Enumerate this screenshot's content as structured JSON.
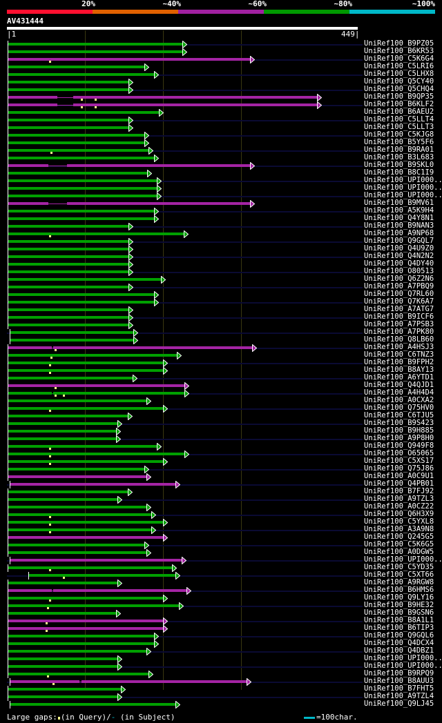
{
  "header": {
    "identity_scale": [
      {
        "label": "20%",
        "color": "#ff1030"
      },
      {
        "label": "~40%",
        "color": "#e06000"
      },
      {
        "label": "~60%",
        "color": "#a020a0"
      },
      {
        "label": "~80%",
        "color": "#009900"
      },
      {
        "label": "~100%",
        "color": "#00b8c8"
      }
    ],
    "query_name": "AV431444",
    "query_start": "1",
    "query_end": "449"
  },
  "colors": {
    "green": "#00a000",
    "magenta": "#a424a4",
    "stripe": "#0a0a33",
    "grid": "#3a3810",
    "gap_mark": "#ffff88"
  },
  "query_length": 449,
  "hits": [
    {
      "label": "UniRef100_B9PZ05",
      "color": "green",
      "start": 1,
      "end": 226,
      "marks": [],
      "gaps": []
    },
    {
      "label": "UniRef100_B6KR53",
      "color": "green",
      "start": 1,
      "end": 226,
      "marks": [],
      "gaps": []
    },
    {
      "label": "UniRef100_C5K6G4",
      "color": "magenta",
      "start": 1,
      "end": 314,
      "marks": [
        54
      ],
      "gaps": []
    },
    {
      "label": "UniRef100_C5LRI6",
      "color": "green",
      "start": 1,
      "end": 177,
      "marks": [],
      "gaps": []
    },
    {
      "label": "UniRef100_C5LHX8",
      "color": "green",
      "start": 1,
      "end": 190,
      "marks": [],
      "gaps": []
    },
    {
      "label": "UniRef100_Q5CY40",
      "color": "green",
      "start": 1,
      "end": 157,
      "marks": [],
      "gaps": []
    },
    {
      "label": "UniRef100_Q5CHQ4",
      "color": "green",
      "start": 1,
      "end": 157,
      "marks": [],
      "gaps": []
    },
    {
      "label": "UniRef100_B9QP35",
      "color": "magenta",
      "start": 1,
      "end": 400,
      "marks": [
        95,
        113
      ],
      "gaps": [
        [
          64,
          85
        ]
      ]
    },
    {
      "label": "UniRef100_B6KLF2",
      "color": "magenta",
      "start": 1,
      "end": 400,
      "marks": [
        95,
        113
      ],
      "gaps": [
        [
          64,
          85
        ]
      ]
    },
    {
      "label": "UniRef100_B6AEU2",
      "color": "green",
      "start": 1,
      "end": 196,
      "marks": [],
      "gaps": []
    },
    {
      "label": "UniRef100_C5LLT4",
      "color": "green",
      "start": 1,
      "end": 157,
      "marks": [],
      "gaps": []
    },
    {
      "label": "UniRef100_C5LLT3",
      "color": "green",
      "start": 1,
      "end": 157,
      "marks": [],
      "gaps": []
    },
    {
      "label": "UniRef100_C5KJG8",
      "color": "green",
      "start": 1,
      "end": 177,
      "marks": [],
      "gaps": []
    },
    {
      "label": "UniRef100_B5Y5F6",
      "color": "green",
      "start": 1,
      "end": 177,
      "marks": [],
      "gaps": []
    },
    {
      "label": "UniRef100_B9RA01",
      "color": "green",
      "start": 1,
      "end": 183,
      "marks": [
        56
      ],
      "gaps": []
    },
    {
      "label": "UniRef100_B3L683",
      "color": "green",
      "start": 1,
      "end": 190,
      "marks": [],
      "gaps": []
    },
    {
      "label": "UniRef100_B9SKL0",
      "color": "magenta",
      "start": 1,
      "end": 314,
      "marks": [],
      "gaps": [
        [
          53,
          77
        ]
      ]
    },
    {
      "label": "UniRef100_B8C1I9",
      "color": "green",
      "start": 1,
      "end": 181,
      "marks": [],
      "gaps": []
    },
    {
      "label": "UniRef100_UPI000..",
      "color": "green",
      "start": 1,
      "end": 193,
      "marks": [],
      "gaps": []
    },
    {
      "label": "UniRef100_UPI000..",
      "color": "green",
      "start": 1,
      "end": 193,
      "marks": [],
      "gaps": []
    },
    {
      "label": "UniRef100_UPI000..",
      "color": "green",
      "start": 1,
      "end": 193,
      "marks": [],
      "gaps": []
    },
    {
      "label": "UniRef100_B9MV61",
      "color": "magenta",
      "start": 1,
      "end": 314,
      "marks": [],
      "gaps": [
        [
          53,
          77
        ]
      ]
    },
    {
      "label": "UniRef100_A5K9H4",
      "color": "green",
      "start": 1,
      "end": 190,
      "marks": [],
      "gaps": []
    },
    {
      "label": "UniRef100_Q4Y8N1",
      "color": "green",
      "start": 1,
      "end": 190,
      "marks": [],
      "gaps": []
    },
    {
      "label": "UniRef100_B9NAN3",
      "color": "green",
      "start": 1,
      "end": 157,
      "marks": [],
      "gaps": []
    },
    {
      "label": "UniRef100_A9NP68",
      "color": "green",
      "start": 1,
      "end": 228,
      "marks": [
        54
      ],
      "gaps": []
    },
    {
      "label": "UniRef100_Q9GQL7",
      "color": "green",
      "start": 1,
      "end": 157,
      "marks": [],
      "gaps": []
    },
    {
      "label": "UniRef100_Q4U9Z0",
      "color": "green",
      "start": 1,
      "end": 157,
      "marks": [],
      "gaps": []
    },
    {
      "label": "UniRef100_Q4N2N2",
      "color": "green",
      "start": 1,
      "end": 157,
      "marks": [],
      "gaps": []
    },
    {
      "label": "UniRef100_Q4DY40",
      "color": "green",
      "start": 1,
      "end": 157,
      "marks": [],
      "gaps": []
    },
    {
      "label": "UniRef100_O80513",
      "color": "green",
      "start": 1,
      "end": 157,
      "marks": [],
      "gaps": []
    },
    {
      "label": "UniRef100_Q6Z2N6",
      "color": "green",
      "start": 1,
      "end": 199,
      "marks": [],
      "gaps": []
    },
    {
      "label": "UniRef100_A7PBQ9",
      "color": "green",
      "start": 1,
      "end": 157,
      "marks": [],
      "gaps": []
    },
    {
      "label": "UniRef100_Q7RL60",
      "color": "green",
      "start": 1,
      "end": 190,
      "marks": [],
      "gaps": []
    },
    {
      "label": "UniRef100_Q7K6A7",
      "color": "green",
      "start": 1,
      "end": 190,
      "marks": [],
      "gaps": []
    },
    {
      "label": "UniRef100_A7ATG7",
      "color": "green",
      "start": 1,
      "end": 157,
      "marks": [],
      "gaps": []
    },
    {
      "label": "UniRef100_B9ICF6",
      "color": "green",
      "start": 1,
      "end": 157,
      "marks": [],
      "gaps": []
    },
    {
      "label": "UniRef100_A7PSB3",
      "color": "green",
      "start": 1,
      "end": 157,
      "marks": [],
      "gaps": []
    },
    {
      "label": "UniRef100_A7PK80",
      "color": "green",
      "start": 4,
      "end": 163,
      "marks": [],
      "gaps": []
    },
    {
      "label": "UniRef100_Q8LB60",
      "color": "green",
      "start": 4,
      "end": 163,
      "marks": [],
      "gaps": []
    },
    {
      "label": "UniRef100_A4HSJ3",
      "color": "magenta",
      "start": 1,
      "end": 316,
      "marks": [
        62
      ],
      "gaps": [
        [
          57,
          59
        ]
      ]
    },
    {
      "label": "UniRef100_C6TNZ3",
      "color": "green",
      "start": 1,
      "end": 219,
      "marks": [
        56
      ],
      "gaps": []
    },
    {
      "label": "UniRef100_B9FPH2",
      "color": "green",
      "start": 1,
      "end": 201,
      "marks": [
        54
      ],
      "gaps": []
    },
    {
      "label": "UniRef100_B8AY13",
      "color": "green",
      "start": 1,
      "end": 201,
      "marks": [
        54
      ],
      "gaps": []
    },
    {
      "label": "UniRef100_A6YTD1",
      "color": "green",
      "start": 1,
      "end": 162,
      "marks": [],
      "gaps": []
    },
    {
      "label": "UniRef100_Q4QJD1",
      "color": "magenta",
      "start": 1,
      "end": 229,
      "marks": [
        62
      ],
      "gaps": []
    },
    {
      "label": "UniRef100_A4H4D4",
      "color": "green",
      "start": 1,
      "end": 229,
      "marks": [
        62,
        72
      ],
      "gaps": [
        [
          57,
          59
        ]
      ]
    },
    {
      "label": "UniRef100_A0CXA2",
      "color": "green",
      "start": 1,
      "end": 180,
      "marks": [],
      "gaps": []
    },
    {
      "label": "UniRef100_Q75HV0",
      "color": "green",
      "start": 1,
      "end": 201,
      "marks": [
        54
      ],
      "gaps": []
    },
    {
      "label": "UniRef100_C6TJU5",
      "color": "green",
      "start": 1,
      "end": 156,
      "marks": [],
      "gaps": []
    },
    {
      "label": "UniRef100_B9S423",
      "color": "green",
      "start": 1,
      "end": 143,
      "marks": [],
      "gaps": []
    },
    {
      "label": "UniRef100_B9H885",
      "color": "green",
      "start": 1,
      "end": 141,
      "marks": [],
      "gaps": []
    },
    {
      "label": "UniRef100_A9P8H0",
      "color": "green",
      "start": 1,
      "end": 141,
      "marks": [],
      "gaps": []
    },
    {
      "label": "UniRef100_Q949F8",
      "color": "green",
      "start": 1,
      "end": 193,
      "marks": [
        54
      ],
      "gaps": []
    },
    {
      "label": "UniRef100_O65065",
      "color": "green",
      "start": 1,
      "end": 229,
      "marks": [
        54
      ],
      "gaps": []
    },
    {
      "label": "UniRef100_C5XS17",
      "color": "green",
      "start": 1,
      "end": 201,
      "marks": [
        54
      ],
      "gaps": []
    },
    {
      "label": "UniRef100_Q75J86",
      "color": "green",
      "start": 1,
      "end": 177,
      "marks": [],
      "gaps": []
    },
    {
      "label": "UniRef100_A0C9U1",
      "color": "magenta",
      "start": 1,
      "end": 180,
      "marks": [],
      "gaps": []
    },
    {
      "label": "UniRef100_Q4PB01",
      "color": "magenta",
      "start": 4,
      "end": 217,
      "marks": [],
      "gaps": []
    },
    {
      "label": "UniRef100_B7FJ92",
      "color": "green",
      "start": 1,
      "end": 156,
      "marks": [],
      "gaps": []
    },
    {
      "label": "UniRef100_A9TZL3",
      "color": "green",
      "start": 1,
      "end": 143,
      "marks": [],
      "gaps": []
    },
    {
      "label": "UniRef100_A0CZ22",
      "color": "green",
      "start": 1,
      "end": 180,
      "marks": [],
      "gaps": []
    },
    {
      "label": "UniRef100_Q6H3X9",
      "color": "green",
      "start": 1,
      "end": 186,
      "marks": [
        54
      ],
      "gaps": []
    },
    {
      "label": "UniRef100_C5YXL8",
      "color": "green",
      "start": 1,
      "end": 201,
      "marks": [
        54
      ],
      "gaps": []
    },
    {
      "label": "UniRef100_A3A9N8",
      "color": "green",
      "start": 1,
      "end": 186,
      "marks": [
        54
      ],
      "gaps": []
    },
    {
      "label": "UniRef100_Q245G5",
      "color": "magenta",
      "start": 1,
      "end": 201,
      "marks": [],
      "gaps": []
    },
    {
      "label": "UniRef100_C5K6G5",
      "color": "green",
      "start": 1,
      "end": 177,
      "marks": [],
      "gaps": []
    },
    {
      "label": "UniRef100_A0DGW5",
      "color": "green",
      "start": 1,
      "end": 180,
      "marks": [],
      "gaps": []
    },
    {
      "label": "UniRef100_UPI000..",
      "color": "magenta",
      "start": 4,
      "end": 225,
      "marks": [],
      "gaps": []
    },
    {
      "label": "UniRef100_C5YD35",
      "color": "green",
      "start": 1,
      "end": 213,
      "marks": [
        54
      ],
      "gaps": []
    },
    {
      "label": "UniRef100_C5XT66",
      "color": "green",
      "start": 28,
      "end": 217,
      "marks": [
        72
      ],
      "gaps": []
    },
    {
      "label": "UniRef100_A9RGW8",
      "color": "green",
      "start": 1,
      "end": 143,
      "marks": [],
      "gaps": []
    },
    {
      "label": "UniRef100_B6HMS6",
      "color": "magenta",
      "start": 1,
      "end": 232,
      "marks": [],
      "gaps": [
        [
          57,
          59
        ]
      ]
    },
    {
      "label": "UniRef100_Q9LY16",
      "color": "green",
      "start": 1,
      "end": 201,
      "marks": [
        54
      ],
      "gaps": []
    },
    {
      "label": "UniRef100_B9HE32",
      "color": "green",
      "start": 1,
      "end": 222,
      "marks": [
        52
      ],
      "gaps": []
    },
    {
      "label": "UniRef100_B9GSN6",
      "color": "green",
      "start": 1,
      "end": 141,
      "marks": [],
      "gaps": []
    },
    {
      "label": "UniRef100_B8A1L1",
      "color": "magenta",
      "start": 1,
      "end": 201,
      "marks": [
        50
      ],
      "gaps": []
    },
    {
      "label": "UniRef100_B6TIP3",
      "color": "magenta",
      "start": 1,
      "end": 201,
      "marks": [
        50
      ],
      "gaps": []
    },
    {
      "label": "UniRef100_Q9GQL6",
      "color": "green",
      "start": 1,
      "end": 190,
      "marks": [],
      "gaps": []
    },
    {
      "label": "UniRef100_Q4DCX4",
      "color": "green",
      "start": 1,
      "end": 190,
      "marks": [],
      "gaps": []
    },
    {
      "label": "UniRef100_Q4DBZ1",
      "color": "green",
      "start": 1,
      "end": 180,
      "marks": [],
      "gaps": []
    },
    {
      "label": "UniRef100_UPI000..",
      "color": "green",
      "start": 1,
      "end": 143,
      "marks": [],
      "gaps": []
    },
    {
      "label": "UniRef100_UPI000..",
      "color": "green",
      "start": 1,
      "end": 143,
      "marks": [],
      "gaps": []
    },
    {
      "label": "UniRef100_B9RPQ9",
      "color": "green",
      "start": 1,
      "end": 183,
      "marks": [
        52
      ],
      "gaps": []
    },
    {
      "label": "UniRef100_B8AUU3",
      "color": "magenta",
      "start": 4,
      "end": 309,
      "marks": [
        59
      ],
      "gaps": [
        [
          93,
          95
        ]
      ]
    },
    {
      "label": "UniRef100_B7FHT5",
      "color": "green",
      "start": 1,
      "end": 147,
      "marks": [],
      "gaps": []
    },
    {
      "label": "UniRef100_A9TZL4",
      "color": "green",
      "start": 1,
      "end": 143,
      "marks": [],
      "gaps": []
    },
    {
      "label": "UniRef100_Q9LJ45",
      "color": "green",
      "start": 4,
      "end": 217,
      "marks": [],
      "gaps": []
    }
  ],
  "legend": {
    "prefix": "Large gaps:",
    "query_text": "(in Query)/",
    "subject_glyph": "-",
    "subject_text": " (in Subject)",
    "scale_text": "=100char."
  }
}
